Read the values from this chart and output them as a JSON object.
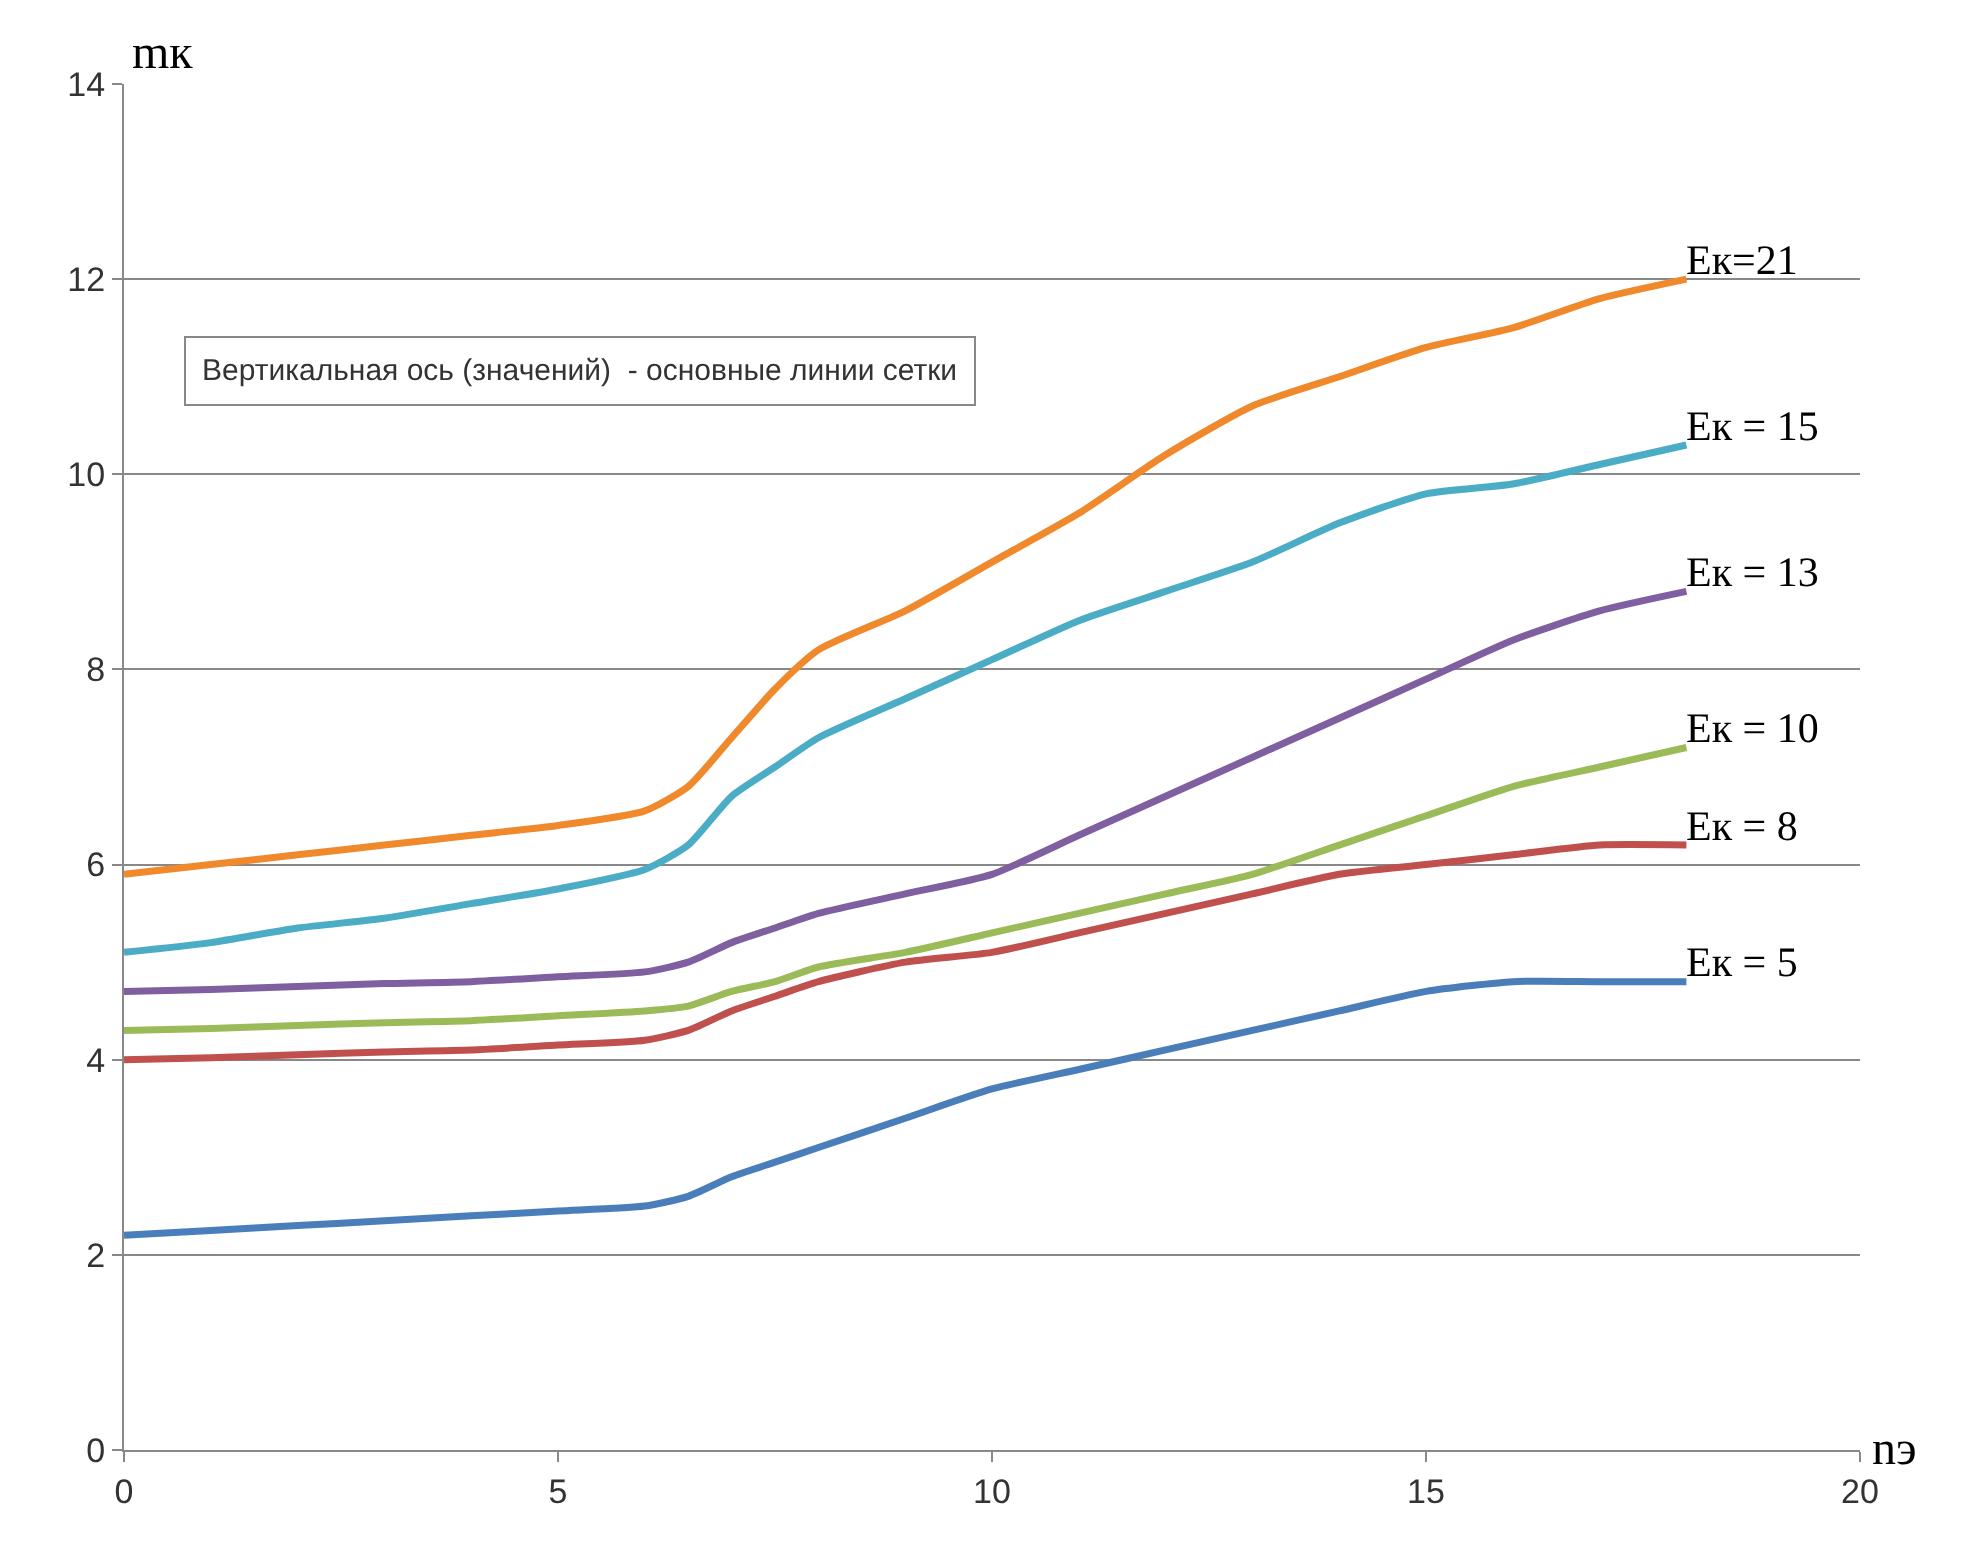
{
  "chart_data": {
    "type": "line",
    "xlabel": "nэ",
    "ylabel": "mк",
    "xlim": [
      0,
      20
    ],
    "xticks": [
      0,
      5,
      10,
      15,
      20
    ],
    "ylim": [
      0,
      14
    ],
    "yticks": [
      0,
      2,
      4,
      6,
      8,
      10,
      12,
      14
    ],
    "grid": "y",
    "legend": false,
    "marker": "none",
    "line_style": "solid",
    "annotations": [
      "Вертикальная ось (значений)  - основные линии сетки"
    ],
    "x": [
      0,
      1,
      2,
      3,
      4,
      5,
      6,
      6.5,
      7,
      7.5,
      8,
      9,
      10,
      11,
      12,
      13,
      14,
      15,
      16,
      17,
      18
    ],
    "series": [
      {
        "name": "Eк=21",
        "color": "#f0882c",
        "values": [
          5.9,
          6.0,
          6.1,
          6.2,
          6.3,
          6.4,
          6.55,
          6.8,
          7.3,
          7.8,
          8.2,
          8.6,
          9.1,
          9.6,
          10.2,
          10.7,
          11.0,
          11.3,
          11.5,
          11.8,
          12.0
        ]
      },
      {
        "name": "Eк = 15",
        "color": "#4bacc6",
        "values": [
          5.1,
          5.2,
          5.35,
          5.45,
          5.6,
          5.75,
          5.95,
          6.2,
          6.7,
          7.0,
          7.3,
          7.7,
          8.1,
          8.5,
          8.8,
          9.1,
          9.5,
          9.8,
          9.9,
          10.1,
          10.3
        ]
      },
      {
        "name": "Eк = 13",
        "color": "#7f5fa0",
        "values": [
          4.7,
          4.72,
          4.75,
          4.78,
          4.8,
          4.85,
          4.9,
          5.0,
          5.2,
          5.35,
          5.5,
          5.7,
          5.9,
          6.3,
          6.7,
          7.1,
          7.5,
          7.9,
          8.3,
          8.6,
          8.8
        ]
      },
      {
        "name": "Eк = 10",
        "color": "#9bbb59",
        "values": [
          4.3,
          4.32,
          4.35,
          4.38,
          4.4,
          4.45,
          4.5,
          4.55,
          4.7,
          4.8,
          4.95,
          5.1,
          5.3,
          5.5,
          5.7,
          5.9,
          6.2,
          6.5,
          6.8,
          7.0,
          7.2
        ]
      },
      {
        "name": "Eк = 8",
        "color": "#c0504d",
        "values": [
          4.0,
          4.02,
          4.05,
          4.08,
          4.1,
          4.15,
          4.2,
          4.3,
          4.5,
          4.65,
          4.8,
          5.0,
          5.1,
          5.3,
          5.5,
          5.7,
          5.9,
          6.0,
          6.1,
          6.2,
          6.2
        ]
      },
      {
        "name": "Eк = 5",
        "color": "#4a7ebb",
        "values": [
          2.2,
          2.25,
          2.3,
          2.35,
          2.4,
          2.45,
          2.5,
          2.6,
          2.8,
          2.95,
          3.1,
          3.4,
          3.7,
          3.9,
          4.1,
          4.3,
          4.5,
          4.7,
          4.8,
          4.8,
          4.8
        ]
      }
    ]
  }
}
